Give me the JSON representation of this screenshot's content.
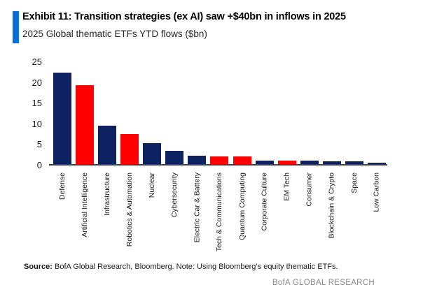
{
  "header": {
    "exhibit_title": "Exhibit 11: Transition strategies (ex AI) saw +$40bn in inflows in 2025",
    "subtitle": "2025 Global thematic ETFs YTD flows ($bn)",
    "accent_color": "#0d6dd1"
  },
  "chart_data": {
    "type": "bar",
    "title": "2025 Global thematic ETFs YTD flows ($bn)",
    "xlabel": "",
    "ylabel": "",
    "ylim": [
      0,
      25
    ],
    "y_ticks": [
      25,
      20,
      15,
      10,
      5,
      0
    ],
    "grid": false,
    "legend": "none",
    "categories": [
      "Defense",
      "Artificial Intelligence",
      "Infrastructure",
      "Robotics & Automation",
      "Nuclear",
      "Cybersecurity",
      "Electric Car & Battery",
      "Tech & Communications",
      "Quantum Computing",
      "Corporate Culture",
      "EM Tech",
      "Consumer",
      "Blockchain & Crypto",
      "Space",
      "Low Carbon"
    ],
    "values": [
      22,
      19,
      9.3,
      7.2,
      5,
      3.2,
      2.1,
      1.9,
      1.8,
      0.8,
      0.8,
      0.8,
      0.7,
      0.6,
      0.3
    ],
    "bar_colors": [
      "navy",
      "red",
      "navy",
      "red",
      "navy",
      "navy",
      "navy",
      "red",
      "red",
      "navy",
      "red",
      "navy",
      "navy",
      "navy",
      "navy"
    ],
    "colors": {
      "navy": "#0e2161",
      "red": "#fe0000"
    },
    "axis_line_color": "#404040"
  },
  "footer": {
    "source_label": "Source:",
    "source_text": " BofA Global Research, Bloomberg. Note: Using Bloomberg’s equity thematic ETFs.",
    "brand": "BofA GLOBAL RESEARCH"
  }
}
